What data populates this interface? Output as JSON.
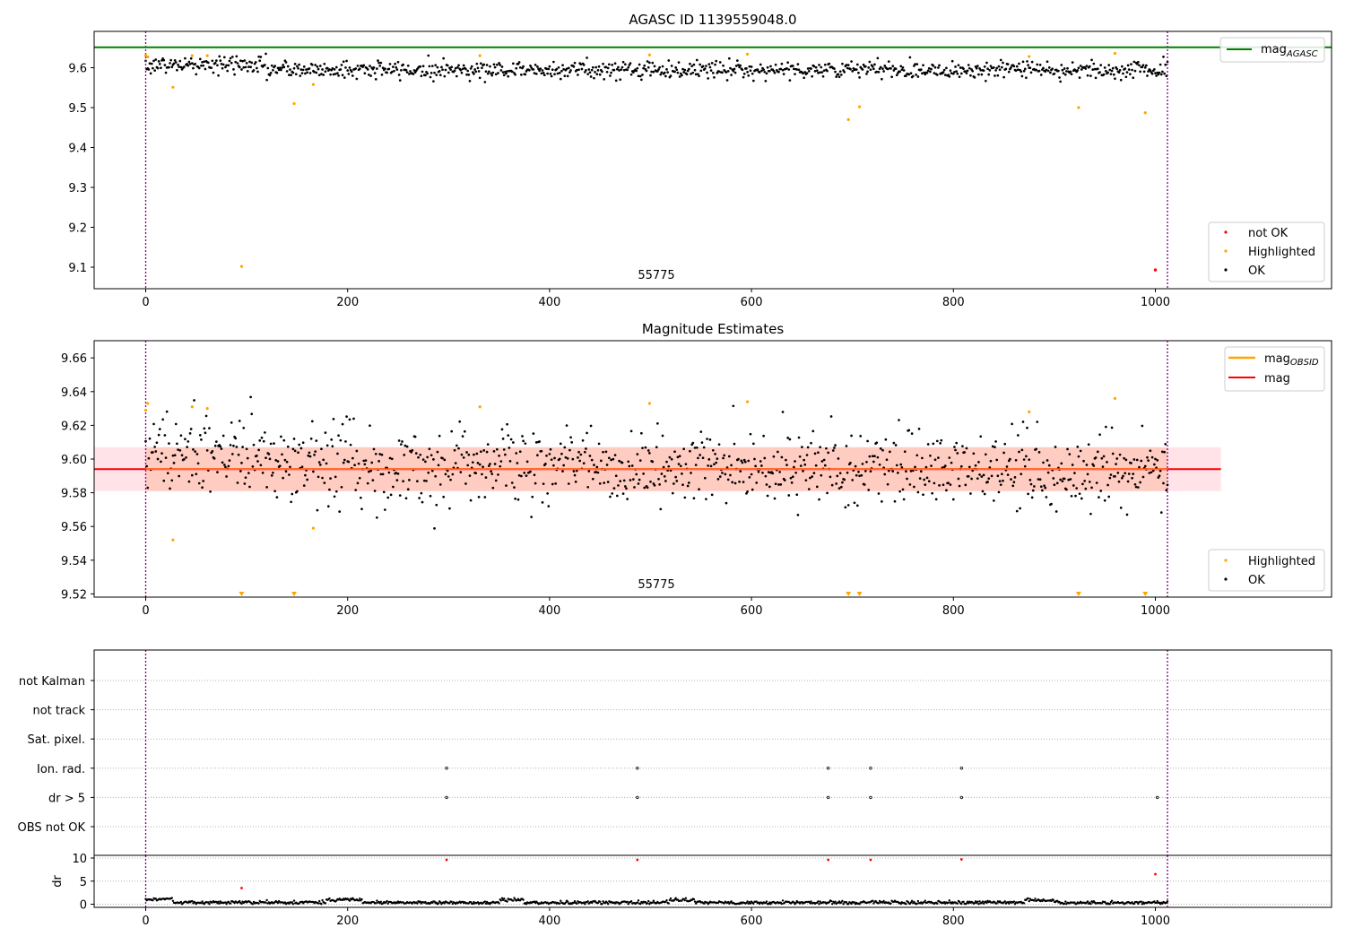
{
  "panel1": {
    "title": "AGASC ID 1139559048.0",
    "annotation": "55775",
    "x_ticks": [
      0,
      200,
      400,
      600,
      800,
      1000
    ],
    "y_ticks": [
      9.1,
      9.2,
      9.3,
      9.4,
      9.5,
      9.6
    ],
    "legend_upper": {
      "agasc_line_label": "mag",
      "agasc_line_sub": "AGASC"
    },
    "legend_lower": {
      "not_ok": "not OK",
      "highlighted": "Highlighted",
      "ok": "OK"
    }
  },
  "panel2": {
    "title": "Magnitude Estimates",
    "annotation": "55775",
    "x_ticks": [
      0,
      200,
      400,
      600,
      800,
      1000
    ],
    "y_ticks": [
      9.52,
      9.54,
      9.56,
      9.58,
      9.6,
      9.62,
      9.64,
      9.66
    ],
    "legend_upper": {
      "obsid_label": "mag",
      "obsid_sub": "OBSID",
      "mag_label": "mag"
    },
    "legend_lower": {
      "highlighted": "Highlighted",
      "ok": "OK"
    }
  },
  "panel3": {
    "categories": [
      "not Kalman",
      "not track",
      "Sat. pixel.",
      "Ion. rad.",
      "dr > 5",
      "OBS not OK"
    ]
  },
  "panel4": {
    "ylabel": "dr",
    "y_ticks": [
      0,
      5,
      10
    ],
    "x_ticks": [
      0,
      200,
      400,
      600,
      800,
      1000
    ]
  },
  "colors": {
    "ok": "#000000",
    "highlighted": "#ffa500",
    "not_ok": "#ff0000",
    "agasc": "#008000",
    "mag": "#ff0000",
    "obsid": "#ffa500",
    "obs_boundary": "#800080"
  },
  "chart_data": [
    {
      "type": "scatter",
      "title": "AGASC ID 1139559048.0",
      "xlim": [
        -50,
        1175
      ],
      "ylim": [
        9.05,
        9.685
      ],
      "agasc_mag": 9.651,
      "obs_boundaries": [
        0,
        1012
      ],
      "ok_series": {
        "name": "OK",
        "x_range": [
          0,
          1012
        ],
        "typical_mag": 9.595,
        "spread": 0.012
      },
      "highlighted": {
        "name": "Highlighted",
        "x": [
          0,
          2,
          27,
          46,
          61,
          95,
          147,
          166,
          331,
          499,
          596,
          696,
          707,
          875,
          924,
          960,
          990
        ],
        "y": [
          9.631,
          9.627,
          9.551,
          9.63,
          9.63,
          9.102,
          9.51,
          9.558,
          9.63,
          9.632,
          9.634,
          9.47,
          9.502,
          9.628,
          9.5,
          9.636,
          9.487
        ]
      },
      "not_ok": {
        "name": "not OK",
        "x": [
          1000
        ],
        "y": [
          9.093
        ]
      }
    },
    {
      "type": "scatter",
      "title": "Magnitude Estimates",
      "xlim": [
        -50,
        1175
      ],
      "ylim": [
        9.517,
        9.67
      ],
      "mag": 9.594,
      "mag_band_inner": [
        9.581,
        9.607
      ],
      "mag_band_outer": [
        9.581,
        9.607
      ],
      "band_x_range": [
        -50,
        1065
      ],
      "obs_boundaries": [
        0,
        1012
      ],
      "ok_series": {
        "name": "OK",
        "x_range": [
          0,
          1012
        ],
        "typical_mag": 9.595,
        "spread": 0.012
      },
      "highlighted": {
        "name": "Highlighted",
        "x": [
          0,
          2,
          27,
          46,
          61,
          166,
          331,
          499,
          596,
          875,
          960
        ],
        "y": [
          9.629,
          9.633,
          9.552,
          9.631,
          9.63,
          9.559,
          9.631,
          9.633,
          9.634,
          9.628,
          9.636
        ]
      },
      "below_range_x": [
        95,
        147,
        696,
        707,
        924,
        990
      ]
    },
    {
      "type": "scatter",
      "categories": [
        "not Kalman",
        "not track",
        "Sat. pixel.",
        "Ion. rad.",
        "dr > 5",
        "OBS not OK"
      ],
      "flags": {
        "Ion. rad.": [
          298,
          487,
          676,
          718,
          808
        ],
        "dr > 5": [
          298,
          487,
          676,
          718,
          808,
          1002
        ]
      },
      "obs_boundaries": [
        0,
        1012
      ]
    },
    {
      "type": "scatter",
      "ylabel": "dr",
      "ylim": [
        -0.5,
        10.5
      ],
      "xlim": [
        -50,
        1175
      ],
      "ok_series": {
        "x_range": [
          0,
          1012
        ],
        "typical_dr": 0.6
      },
      "not_ok": {
        "x": [
          95,
          298,
          487,
          676,
          718,
          808,
          1000
        ],
        "y": [
          3.5,
          9.6,
          9.6,
          9.6,
          9.6,
          9.7,
          6.5
        ]
      }
    }
  ]
}
